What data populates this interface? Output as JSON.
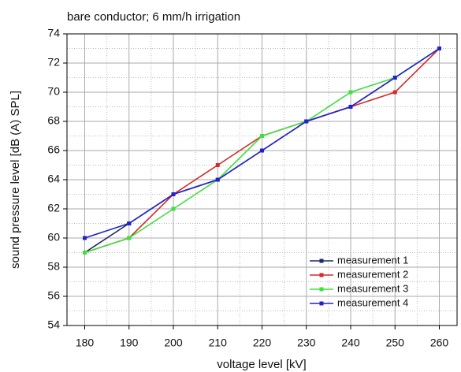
{
  "chart_data": {
    "type": "line",
    "title": "bare conductor; 6 mm/h irrigation",
    "x_label": "voltage level [kV]",
    "y_label": "sound pressure level [dB (A) SPL]",
    "x": [
      180,
      190,
      200,
      210,
      220,
      230,
      240,
      250,
      260
    ],
    "series": [
      {
        "name": "measurement 1",
        "color": "#1c2a5e",
        "values": [
          59,
          61,
          63,
          64,
          66,
          68,
          69,
          71,
          73
        ]
      },
      {
        "name": "measurement 2",
        "color": "#d42a2a",
        "values": [
          59,
          60,
          63,
          65,
          67,
          68,
          69,
          70,
          73
        ]
      },
      {
        "name": "measurement 3",
        "color": "#3ee03e",
        "values": [
          59,
          60,
          62,
          64,
          67,
          68,
          70,
          71,
          73
        ]
      },
      {
        "name": "measurement 4",
        "color": "#2222cc",
        "values": [
          60,
          61,
          63,
          64,
          66,
          68,
          69,
          71,
          73
        ]
      }
    ],
    "xlim": [
      176,
      264
    ],
    "xticks": [
      180,
      190,
      200,
      210,
      220,
      230,
      240,
      250,
      260
    ],
    "ylim": [
      54,
      74
    ],
    "yticks": [
      54,
      56,
      58,
      60,
      62,
      64,
      66,
      68,
      70,
      72,
      74
    ],
    "grid": true,
    "legend_position": "lower right"
  }
}
